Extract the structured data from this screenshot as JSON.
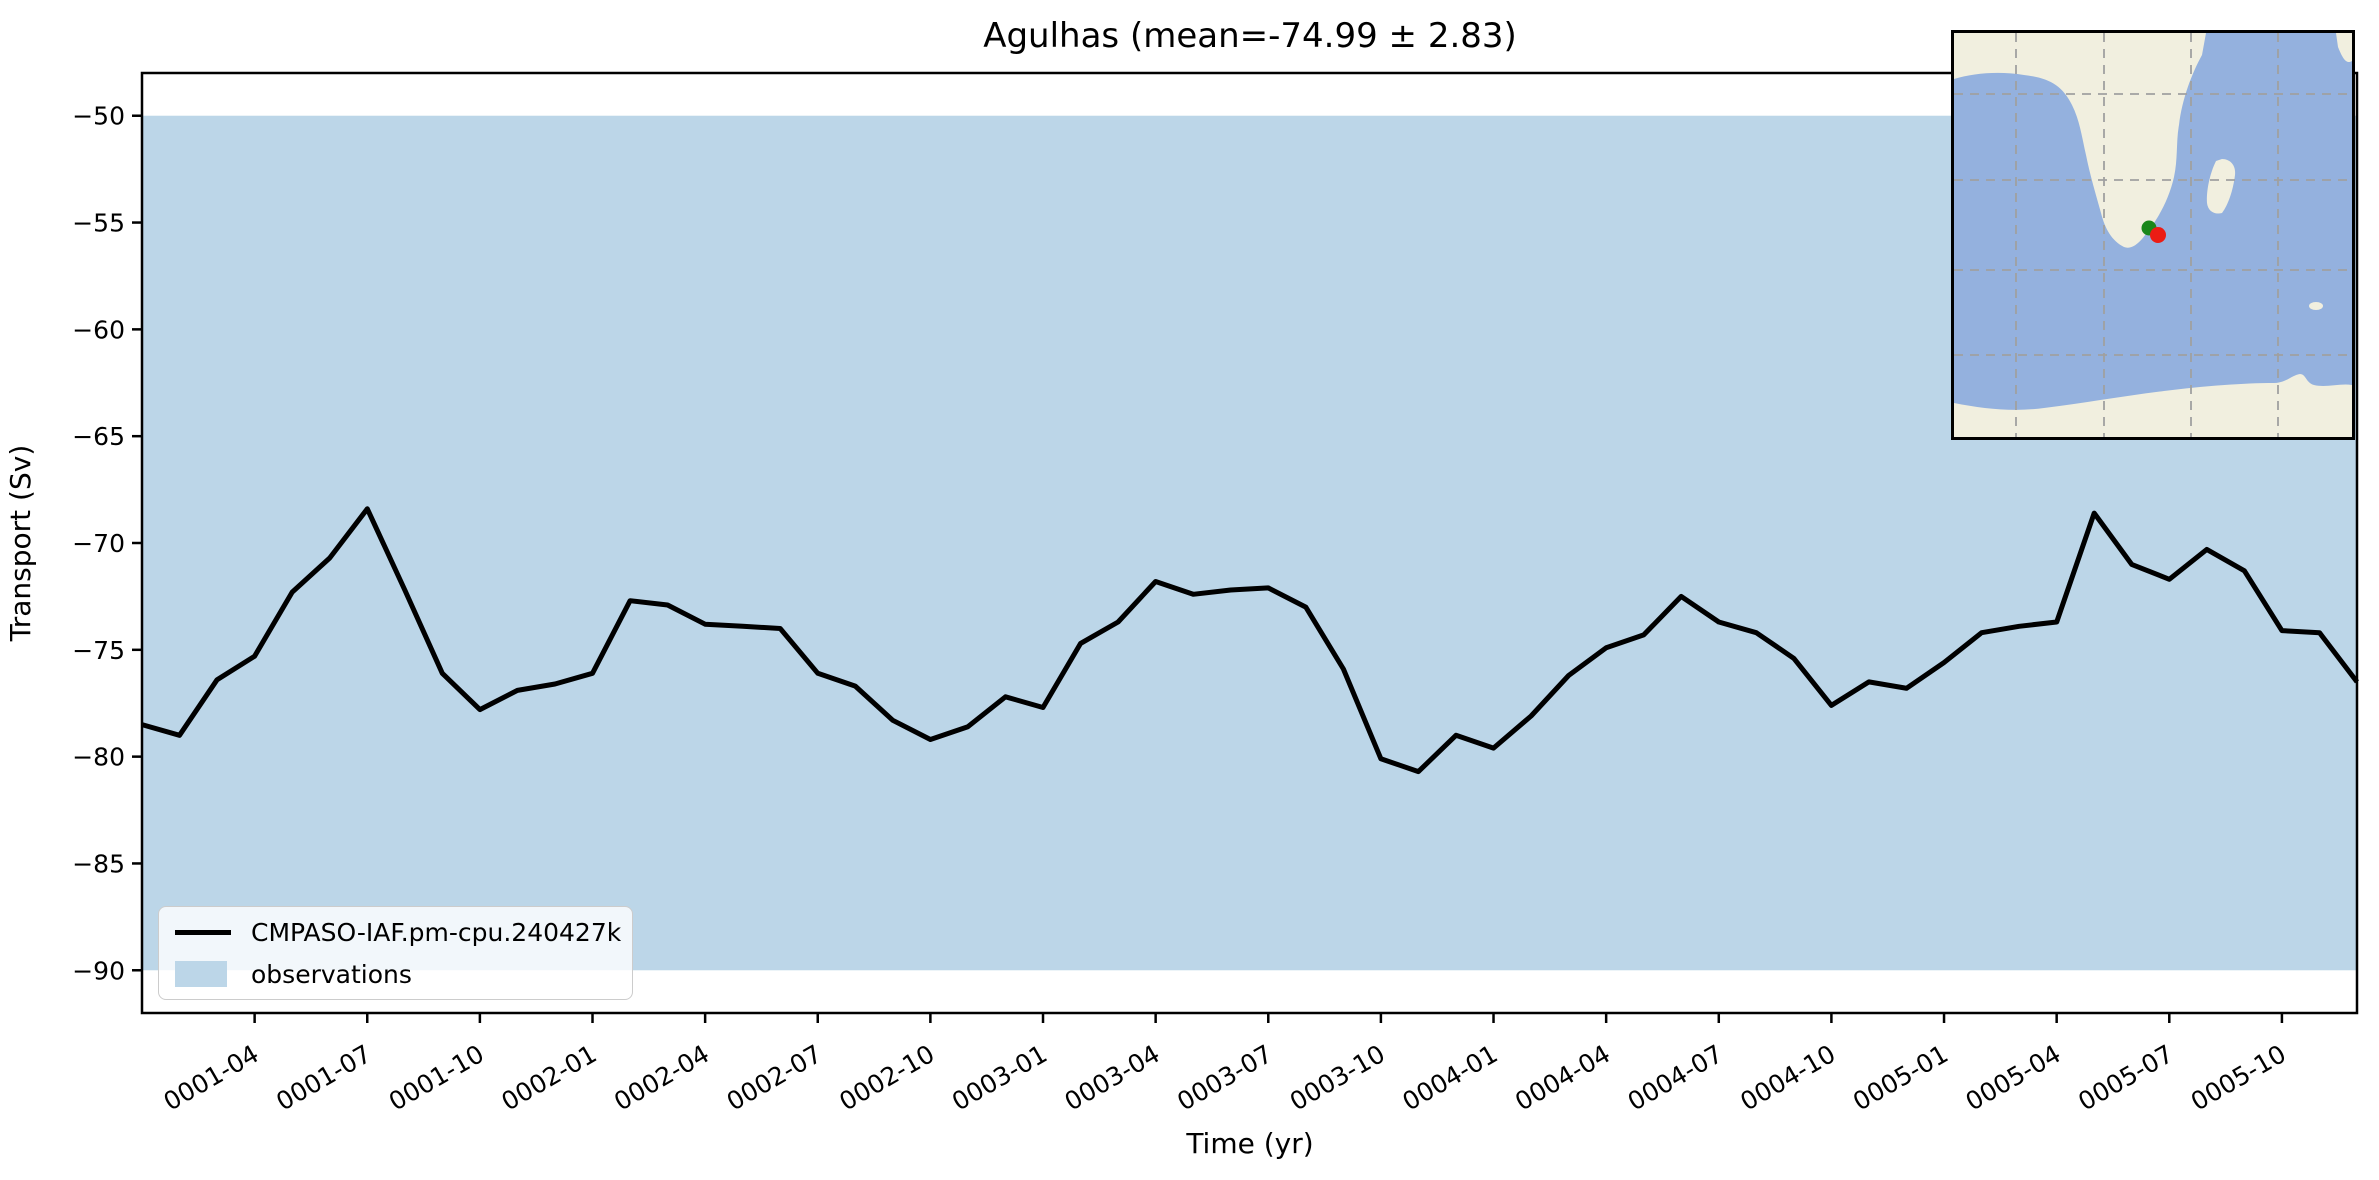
{
  "title": "Agulhas (mean=-74.99 ± 2.83)",
  "chart_data": {
    "type": "line",
    "title": "Agulhas (mean=-74.99 ± 2.83)",
    "xlabel": "Time (yr)",
    "ylabel": "Transport (Sv)",
    "ylim": [
      -92,
      -48
    ],
    "yticks": [
      -50,
      -55,
      -60,
      -65,
      -70,
      -75,
      -80,
      -85,
      -90
    ],
    "grid": false,
    "legend_position": "lower left",
    "x": [
      "0001-01",
      "0001-02",
      "0001-03",
      "0001-04",
      "0001-05",
      "0001-06",
      "0001-07",
      "0001-08",
      "0001-09",
      "0001-10",
      "0001-11",
      "0001-12",
      "0002-01",
      "0002-02",
      "0002-03",
      "0002-04",
      "0002-05",
      "0002-06",
      "0002-07",
      "0002-08",
      "0002-09",
      "0002-10",
      "0002-11",
      "0002-12",
      "0003-01",
      "0003-02",
      "0003-03",
      "0003-04",
      "0003-05",
      "0003-06",
      "0003-07",
      "0003-08",
      "0003-09",
      "0003-10",
      "0003-11",
      "0003-12",
      "0004-01",
      "0004-02",
      "0004-03",
      "0004-04",
      "0004-05",
      "0004-06",
      "0004-07",
      "0004-08",
      "0004-09",
      "0004-10",
      "0004-11",
      "0004-12",
      "0005-01",
      "0005-02",
      "0005-03",
      "0005-04",
      "0005-05",
      "0005-06",
      "0005-07",
      "0005-08",
      "0005-09",
      "0005-10",
      "0005-11",
      "0005-12"
    ],
    "xtick_labels": [
      "0001-04",
      "0001-07",
      "0001-10",
      "0002-01",
      "0002-04",
      "0002-07",
      "0002-10",
      "0003-01",
      "0003-04",
      "0003-07",
      "0003-10",
      "0004-01",
      "0004-04",
      "0004-07",
      "0004-10",
      "0005-01",
      "0005-04",
      "0005-07",
      "0005-10"
    ],
    "series": [
      {
        "name": "CMPASO-IAF.pm-cpu.240427k",
        "color": "#000000",
        "values": [
          -78.5,
          -79.0,
          -76.4,
          -75.3,
          -72.3,
          -70.7,
          -68.4,
          -72.2,
          -76.1,
          -77.8,
          -76.9,
          -76.6,
          -76.1,
          -72.7,
          -72.9,
          -73.8,
          -73.9,
          -74.0,
          -76.1,
          -76.7,
          -78.3,
          -79.2,
          -78.6,
          -77.2,
          -77.7,
          -74.7,
          -73.7,
          -71.8,
          -72.4,
          -72.2,
          -72.1,
          -73.0,
          -75.9,
          -80.1,
          -80.7,
          -79.0,
          -79.6,
          -78.1,
          -76.2,
          -74.9,
          -74.3,
          -72.5,
          -73.7,
          -74.2,
          -75.4,
          -77.6,
          -76.5,
          -76.8,
          -75.6,
          -74.2,
          -73.9,
          -73.7,
          -68.6,
          -71.0,
          -71.7,
          -70.3,
          -71.3,
          -74.1,
          -74.2,
          -76.5
        ]
      }
    ],
    "band": {
      "name": "observations",
      "range": [
        -90,
        -50
      ],
      "color": "#bcd6e8"
    }
  },
  "legend": {
    "entries": [
      {
        "label": "CMPASO-IAF.pm-cpu.240427k",
        "swatch": "line",
        "color": "#000000"
      },
      {
        "label": "observations",
        "swatch": "patch",
        "color": "#bcd6e8"
      }
    ]
  },
  "inset_map": {
    "ocean_color": "#94b1de",
    "land_color": "#f1efdf",
    "gridline_color": "#a0a0a0",
    "markers": [
      {
        "name": "green-marker",
        "color": "#1a871a"
      },
      {
        "name": "red-marker",
        "color": "#ec1c14"
      }
    ]
  }
}
